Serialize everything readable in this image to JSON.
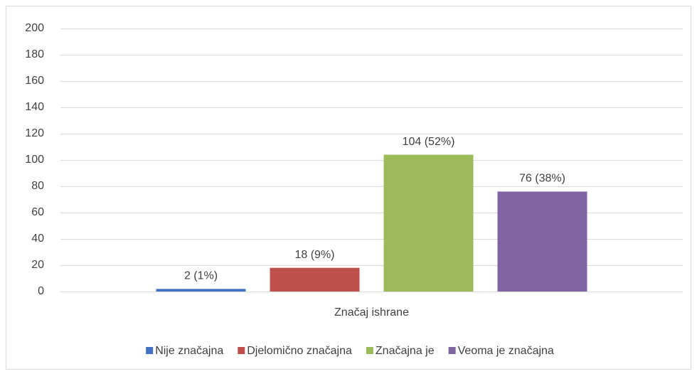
{
  "chart_data": {
    "type": "bar",
    "categories": [
      "Značaj ishrane"
    ],
    "series": [
      {
        "name": "Nije značajna",
        "color": "#4472c4",
        "values": [
          2
        ],
        "value_labels": [
          "2 (1%)"
        ]
      },
      {
        "name": "Djelomično značajna",
        "color": "#c0504d",
        "values": [
          18
        ],
        "value_labels": [
          "18 (9%)"
        ]
      },
      {
        "name": "Značajna je",
        "color": "#9bbb59",
        "values": [
          104
        ],
        "value_labels": [
          "104 (52%)"
        ]
      },
      {
        "name": "Veoma je značajna",
        "color": "#8064a2",
        "values": [
          76
        ],
        "value_labels": [
          "76 (38%)"
        ]
      }
    ],
    "ylim": [
      0,
      200
    ],
    "yticks": [
      0,
      20,
      40,
      60,
      80,
      100,
      120,
      140,
      160,
      180,
      200
    ],
    "grid": true,
    "legend": "bottom"
  }
}
